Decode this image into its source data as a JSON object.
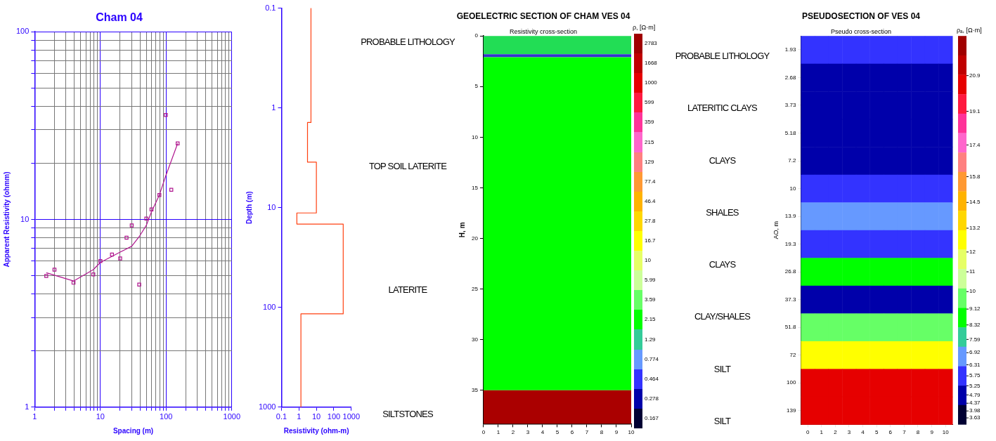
{
  "chart_data": [
    {
      "type": "scatter",
      "title": "Cham 04",
      "xlabel": "Spacing (m)",
      "ylabel": "Apparent Resistivity (ohmm)",
      "log": "xy",
      "grid": true,
      "marker": "square",
      "xlim": [
        1,
        1000
      ],
      "ylim": [
        1,
        100
      ],
      "xticks": [
        1,
        {
          "value": 2,
          "label": null
        },
        {
          "value": 3,
          "label": null
        },
        {
          "value": 4,
          "label": null
        },
        {
          "value": 5,
          "label": null
        },
        {
          "value": 6,
          "label": null
        },
        {
          "value": 7,
          "label": null
        },
        {
          "value": 8,
          "label": null
        },
        {
          "value": 9,
          "label": null
        },
        10,
        {
          "value": 20,
          "label": null
        },
        {
          "value": 30,
          "label": null
        },
        {
          "value": 40,
          "label": null
        },
        {
          "value": 50,
          "label": null
        },
        {
          "value": 60,
          "label": null
        },
        {
          "value": 70,
          "label": null
        },
        {
          "value": 80,
          "label": null
        },
        {
          "value": 90,
          "label": null
        },
        100,
        {
          "value": 200,
          "label": null
        },
        {
          "value": 300,
          "label": null
        },
        {
          "value": 400,
          "label": null
        },
        {
          "value": 500,
          "label": null
        },
        {
          "value": 600,
          "label": null
        },
        {
          "value": 700,
          "label": null
        },
        {
          "value": 800,
          "label": null
        },
        {
          "value": 900,
          "label": null
        },
        1000
      ],
      "yticks": [
        1,
        {
          "value": 2,
          "label": null
        },
        {
          "value": 3,
          "label": null
        },
        {
          "value": 4,
          "label": null
        },
        {
          "value": 5,
          "label": null
        },
        {
          "value": 6,
          "label": null
        },
        {
          "value": 7,
          "label": null
        },
        {
          "value": 8,
          "label": null
        },
        {
          "value": 9,
          "label": null
        },
        10,
        {
          "value": 20,
          "label": null
        },
        {
          "value": 30,
          "label": null
        },
        {
          "value": 40,
          "label": null
        },
        {
          "value": 50,
          "label": null
        },
        {
          "value": 60,
          "label": null
        },
        {
          "value": 70,
          "label": null
        },
        {
          "value": 80,
          "label": null
        },
        {
          "value": 90,
          "label": null
        },
        100
      ],
      "series": [
        {
          "type": "scatter",
          "color": "#b0178f",
          "x": [
            1.5,
            2,
            3.9,
            7.8,
            10,
            15,
            20,
            25,
            30,
            39,
            50,
            60,
            79,
            99,
            120,
            150
          ],
          "values": [
            5.0,
            5.4,
            4.6,
            5.1,
            6.0,
            6.5,
            6.2,
            8.0,
            9.3,
            4.5,
            10.1,
            11.3,
            13.5,
            36,
            14.4,
            25.4
          ]
        },
        {
          "type": "line",
          "color": "#b0178f",
          "marker": "none",
          "x": [
            1.5,
            3.9,
            7.8,
            10,
            20,
            30,
            39,
            50,
            60,
            79,
            99,
            150
          ],
          "values": [
            5.2,
            4.7,
            5.4,
            5.9,
            6.7,
            7.2,
            8.1,
            9.3,
            11.0,
            13.5,
            17.1,
            25.4
          ]
        }
      ]
    },
    {
      "type": "line",
      "xlabel": "Resistivity (ohm-m)",
      "ylabel": "Depth (m)",
      "log": "xy",
      "marker": "none",
      "xlim": [
        0.1,
        1000
      ],
      "ylim": [
        1000,
        0.1
      ],
      "xticks": [
        0.1,
        1,
        10,
        100,
        1000
      ],
      "yticks": [
        0.1,
        1,
        10,
        100,
        1000
      ],
      "series": [
        {
          "color": "#ff4010",
          "x": [
            4.9,
            4.9,
            3.1,
            3.1,
            10,
            10,
            0.76,
            0.76,
            345,
            345,
            1.3,
            1.3
          ],
          "values": [
            0.1,
            1.4,
            1.4,
            3.5,
            3.5,
            11.3,
            11.3,
            14.6,
            14.6,
            116,
            116,
            1000
          ]
        }
      ],
      "annotations": [
        "PROBABLE LITHOLOGY",
        "TOP SOIL LATERITE",
        "LATERITE",
        "SILTSTONES"
      ]
    },
    {
      "type": "line",
      "title": "GEOELECTRIC SECTION OF CHAM VES 04",
      "subtitle": "Resistivity cross-section",
      "ylabel": "H, m",
      "xlim": [
        0,
        10
      ],
      "xticks": [
        0,
        1,
        2,
        3,
        4,
        5,
        6,
        7,
        8,
        9,
        10
      ],
      "ylim": [
        38.3,
        0
      ],
      "yticks": [
        0,
        5,
        10,
        15,
        20,
        25,
        30,
        35
      ],
      "bands": [
        {
          "axis": "y",
          "from": 0,
          "to": 1.8,
          "color": "#22dd55"
        },
        {
          "axis": "y",
          "from": 1.8,
          "to": 2.1,
          "color": "#3333cc"
        },
        {
          "axis": "y",
          "from": 2.1,
          "to": 35,
          "color": "#00ff00"
        },
        {
          "axis": "y",
          "from": 35,
          "to": 38.3,
          "color": "#aa0000"
        }
      ],
      "annotations": [
        "PROBABLE LITHOLOGY",
        "LATERITIC CLAYS",
        "CLAYS",
        "SHALES",
        "CLAYS",
        "CLAY/SHALES",
        "SILT",
        "SILT"
      ]
    },
    {
      "type": "heatmap",
      "title": "PSEUDOSECTION OF VES 04",
      "subtitle": "Pseudo cross-section",
      "ylabel": "AO, m",
      "clabel": "ρₐ, [Ω·m]",
      "categories": [
        "0",
        "1",
        "2",
        "3",
        "4",
        "5",
        "6",
        "7",
        "8",
        "9",
        "10"
      ],
      "clim": [
        3.3,
        22.9
      ],
      "y_categories": [
        "1.93",
        "2.68",
        "3.73",
        "5.18",
        "7.2",
        "10",
        "13.9",
        "19.3",
        "26.8",
        "37.3",
        "51.8",
        "72",
        "100",
        "139"
      ],
      "cells": [
        [
          5.3,
          5.3,
          5.3,
          5.3,
          5.3,
          5.3,
          5.3,
          5.3,
          5.3,
          5.3,
          5.3
        ],
        [
          4.8,
          4.8,
          4.8,
          4.8,
          4.8,
          4.8,
          4.8,
          4.8,
          4.8,
          4.8,
          4.8
        ],
        [
          4.5,
          4.5,
          4.5,
          4.5,
          4.5,
          4.5,
          4.5,
          4.5,
          4.5,
          4.5,
          4.5
        ],
        [
          4.5,
          4.5,
          4.5,
          4.5,
          4.5,
          4.5,
          4.5,
          4.5,
          4.5,
          4.5,
          4.5
        ],
        [
          5.0,
          5.0,
          5.0,
          5.0,
          5.0,
          5.0,
          5.0,
          5.0,
          5.0,
          5.0,
          5.0
        ],
        [
          5.7,
          5.7,
          5.7,
          5.7,
          5.7,
          5.7,
          5.7,
          5.7,
          5.7,
          5.7,
          5.7
        ],
        [
          6.4,
          6.4,
          6.4,
          6.4,
          6.4,
          6.4,
          6.4,
          6.4,
          6.4,
          6.4,
          6.4
        ],
        [
          6.2,
          6.2,
          6.2,
          6.2,
          6.2,
          6.2,
          6.2,
          6.2,
          6.2,
          6.2,
          6.2
        ],
        [
          8.5,
          8.5,
          8.5,
          8.5,
          8.5,
          8.5,
          8.5,
          8.5,
          8.5,
          8.5,
          8.5
        ],
        [
          4.4,
          4.4,
          4.4,
          4.4,
          4.4,
          4.4,
          4.4,
          4.4,
          4.4,
          4.4,
          4.4
        ],
        [
          10,
          10,
          10,
          10,
          10,
          10,
          10,
          10,
          10,
          10,
          10
        ],
        [
          12.5,
          12.5,
          12.5,
          12.5,
          12.5,
          12.5,
          12.5,
          12.5,
          12.5,
          12.5,
          12.5
        ],
        [
          20.9,
          20.9,
          20.9,
          20.9,
          20.9,
          20.9,
          20.9,
          20.9,
          20.9,
          20.9,
          20.9
        ],
        [
          20,
          20,
          20,
          20,
          20,
          20,
          20,
          20,
          20,
          20,
          20
        ]
      ],
      "cticks": [
        20.9,
        19.1,
        17.4,
        15.8,
        14.5,
        13.2,
        12,
        11,
        10,
        9.12,
        8.32,
        7.59,
        6.92,
        6.31,
        5.75,
        5.25,
        4.79,
        4.37,
        3.98,
        3.63
      ]
    },
    {
      "type": "other",
      "title": "ρ, [Ω·m]",
      "annotations": [
        "2783",
        "1668",
        "1000",
        "599",
        "359",
        "215",
        "129",
        "77.4",
        "46.4",
        "27.8",
        "16.7",
        "10",
        "5.99",
        "3.59",
        "2.15",
        "1.29",
        "0.774",
        "0.464",
        "0.278",
        "0.167"
      ]
    }
  ]
}
